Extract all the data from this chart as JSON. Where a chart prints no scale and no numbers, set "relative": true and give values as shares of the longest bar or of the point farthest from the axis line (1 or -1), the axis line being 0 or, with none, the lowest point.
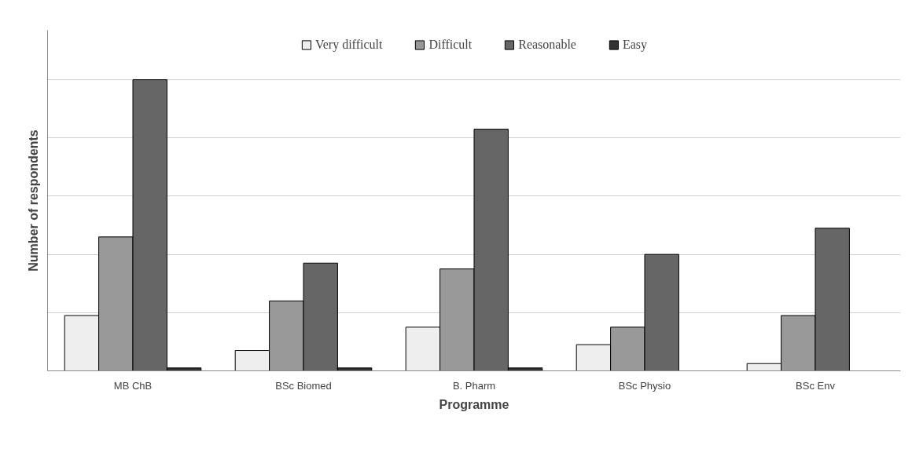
{
  "chart_data": {
    "type": "bar",
    "relative": true,
    "xlabel": "Programme",
    "ylabel": "Number of respondents",
    "categories": [
      "MB ChB",
      "BSc Biomed",
      "B. Pharm",
      "BSc Physio",
      "BSc Env"
    ],
    "series": [
      {
        "name": "Very difficult",
        "color": "#eeeeee",
        "values": [
          0.19,
          0.07,
          0.15,
          0.09,
          0.025
        ]
      },
      {
        "name": "Difficult",
        "color": "#999999",
        "values": [
          0.46,
          0.24,
          0.35,
          0.15,
          0.19
        ]
      },
      {
        "name": "Reasonable",
        "color": "#666666",
        "values": [
          1,
          0.37,
          0.83,
          0.4,
          0.49
        ]
      },
      {
        "name": "Easy",
        "color": "#333333",
        "values": [
          0.01,
          0.01,
          0.01,
          null,
          null
        ]
      }
    ],
    "grid": "y",
    "legend": "top"
  }
}
